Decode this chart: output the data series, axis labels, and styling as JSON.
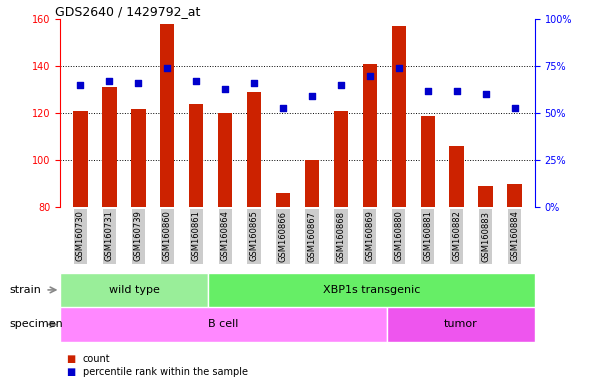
{
  "title": "GDS2640 / 1429792_at",
  "samples": [
    "GSM160730",
    "GSM160731",
    "GSM160739",
    "GSM160860",
    "GSM160861",
    "GSM160864",
    "GSM160865",
    "GSM160866",
    "GSM160867",
    "GSM160868",
    "GSM160869",
    "GSM160880",
    "GSM160881",
    "GSM160882",
    "GSM160883",
    "GSM160884"
  ],
  "counts": [
    121,
    131,
    122,
    158,
    124,
    120,
    129,
    86,
    100,
    121,
    141,
    157,
    119,
    106,
    89,
    90
  ],
  "percentiles": [
    65,
    67,
    66,
    74,
    67,
    63,
    66,
    53,
    59,
    65,
    70,
    74,
    62,
    62,
    60,
    53
  ],
  "ylim_left": [
    80,
    160
  ],
  "ylim_right": [
    0,
    100
  ],
  "yticks_left": [
    80,
    100,
    120,
    140,
    160
  ],
  "yticks_right": [
    0,
    25,
    50,
    75,
    100
  ],
  "yticklabels_right": [
    "0%",
    "25%",
    "50%",
    "75%",
    "100%"
  ],
  "bar_color": "#cc2200",
  "dot_color": "#0000cc",
  "bar_width": 0.5,
  "strain_groups": [
    {
      "label": "wild type",
      "start": 0,
      "end": 5,
      "color": "#99ee99"
    },
    {
      "label": "XBP1s transgenic",
      "start": 5,
      "end": 16,
      "color": "#66ee66"
    }
  ],
  "specimen_groups": [
    {
      "label": "B cell",
      "start": 0,
      "end": 11,
      "color": "#ff88ff"
    },
    {
      "label": "tumor",
      "start": 11,
      "end": 16,
      "color": "#ee55ee"
    }
  ],
  "strain_label": "strain",
  "specimen_label": "specimen",
  "legend_count_label": "count",
  "legend_pct_label": "percentile rank within the sample",
  "bg_color": "#ffffff"
}
